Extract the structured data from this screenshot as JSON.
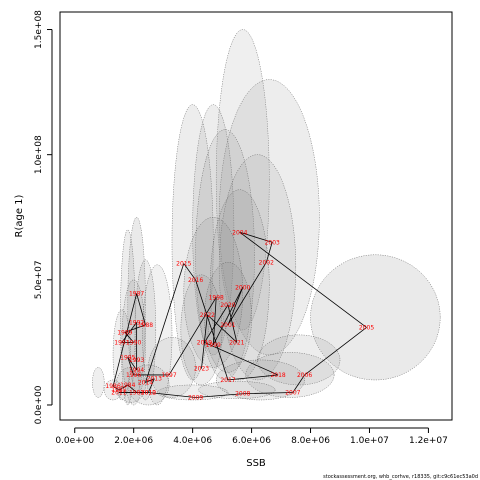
{
  "chart_data": {
    "type": "scatter",
    "title": "",
    "xlabel": "SSB",
    "ylabel": "R(age 1)",
    "xlim": [
      -500000,
      12800000
    ],
    "ylim": [
      -6000000,
      157000000
    ],
    "x_ticks": [
      {
        "value": 0,
        "label": "0.0e+00"
      },
      {
        "value": 2000000,
        "label": "2.0e+06"
      },
      {
        "value": 4000000,
        "label": "4.0e+06"
      },
      {
        "value": 6000000,
        "label": "6.0e+06"
      },
      {
        "value": 8000000,
        "label": "8.0e+06"
      },
      {
        "value": 10000000,
        "label": "1.0e+07"
      },
      {
        "value": 12000000,
        "label": "1.2e+07"
      }
    ],
    "y_ticks": [
      {
        "value": 0,
        "label": "0.0e+00"
      },
      {
        "value": 50000000,
        "label": "5.0e+07"
      },
      {
        "value": 100000000,
        "label": "1.0e+08"
      },
      {
        "value": 150000000,
        "label": "1.5e+08"
      }
    ],
    "grid": false,
    "legend": "none",
    "colors": {
      "ellipse_fill": "#8c8c8c",
      "ellipse_stroke": "#555555",
      "line": "#000000",
      "label": "#ff0000"
    },
    "points": [
      {
        "year": "1983",
        "x": 2100000,
        "y": 5000000
      },
      {
        "year": "1984",
        "x": 1800000,
        "y": 8000000
      },
      {
        "year": "1985",
        "x": 1500000,
        "y": 6000000
      },
      {
        "year": "1986",
        "x": 1300000,
        "y": 7500000
      },
      {
        "year": "1987",
        "x": 2100000,
        "y": 44500000
      },
      {
        "year": "1988",
        "x": 2400000,
        "y": 32000000
      },
      {
        "year": "1989",
        "x": 1700000,
        "y": 29000000
      },
      {
        "year": "1990",
        "x": 2000000,
        "y": 25000000
      },
      {
        "year": "1991",
        "x": 1600000,
        "y": 25000000
      },
      {
        "year": "1992",
        "x": 2100000,
        "y": 33000000
      },
      {
        "year": "1993",
        "x": 2100000,
        "y": 18000000
      },
      {
        "year": "1994",
        "x": 2100000,
        "y": 14000000
      },
      {
        "year": "1995",
        "x": 1800000,
        "y": 19000000
      },
      {
        "year": "1996",
        "x": 2000000,
        "y": 12000000
      },
      {
        "year": "1997",
        "x": 3200000,
        "y": 12000000
      },
      {
        "year": "1998",
        "x": 4800000,
        "y": 43000000
      },
      {
        "year": "1999",
        "x": 4700000,
        "y": 24000000
      },
      {
        "year": "2000",
        "x": 5700000,
        "y": 47000000
      },
      {
        "year": "2001",
        "x": 5200000,
        "y": 32000000
      },
      {
        "year": "2002",
        "x": 6500000,
        "y": 57000000
      },
      {
        "year": "2003",
        "x": 6700000,
        "y": 65000000
      },
      {
        "year": "2004",
        "x": 5600000,
        "y": 69000000
      },
      {
        "year": "2005",
        "x": 9900000,
        "y": 31000000
      },
      {
        "year": "2006",
        "x": 7800000,
        "y": 12000000
      },
      {
        "year": "2007",
        "x": 7400000,
        "y": 5000000
      },
      {
        "year": "2008",
        "x": 5700000,
        "y": 4500000
      },
      {
        "year": "2009",
        "x": 4100000,
        "y": 3000000
      },
      {
        "year": "2010",
        "x": 2500000,
        "y": 5000000
      },
      {
        "year": "2011",
        "x": 1500000,
        "y": 5000000
      },
      {
        "year": "2012",
        "x": 2500000,
        "y": 5000000
      },
      {
        "year": "2013",
        "x": 2700000,
        "y": 10500000
      },
      {
        "year": "2014",
        "x": 2400000,
        "y": 9000000
      },
      {
        "year": "2015",
        "x": 3700000,
        "y": 56500000
      },
      {
        "year": "2016",
        "x": 4100000,
        "y": 50000000
      },
      {
        "year": "2017",
        "x": 5200000,
        "y": 10000000
      },
      {
        "year": "2018",
        "x": 6900000,
        "y": 12000000
      },
      {
        "year": "2019",
        "x": 4400000,
        "y": 25000000
      },
      {
        "year": "2020",
        "x": 5200000,
        "y": 40000000
      },
      {
        "year": "2021",
        "x": 5500000,
        "y": 25000000
      },
      {
        "year": "2022",
        "x": 4500000,
        "y": 36000000
      },
      {
        "year": "2023",
        "x": 4300000,
        "y": 14500000
      }
    ],
    "path_order": [
      "1983",
      "1984",
      "1985",
      "1986",
      "1987",
      "1988",
      "1989",
      "1990",
      "1991",
      "1992",
      "1993",
      "1994",
      "1995",
      "1996",
      "1997",
      "1998",
      "1999",
      "2000",
      "2001",
      "2002",
      "2003",
      "2004",
      "2005",
      "2006",
      "2007",
      "2008",
      "2009",
      "2010",
      "2011",
      "2012",
      "2013",
      "2014",
      "2015",
      "2016",
      "2017",
      "2018",
      "2019",
      "2020",
      "2021",
      "2022",
      "2023"
    ],
    "ellipses": [
      {
        "cx": 5700000,
        "cy": 90000000,
        "rx": 900000,
        "ry": 60000000,
        "opacity": 0.14
      },
      {
        "cx": 6600000,
        "cy": 75000000,
        "rx": 1700000,
        "ry": 55000000,
        "opacity": 0.16
      },
      {
        "cx": 4700000,
        "cy": 70000000,
        "rx": 700000,
        "ry": 50000000,
        "opacity": 0.16
      },
      {
        "cx": 4000000,
        "cy": 65000000,
        "rx": 700000,
        "ry": 55000000,
        "opacity": 0.16
      },
      {
        "cx": 5100000,
        "cy": 60000000,
        "rx": 1000000,
        "ry": 50000000,
        "opacity": 0.16
      },
      {
        "cx": 6200000,
        "cy": 55000000,
        "rx": 1300000,
        "ry": 45000000,
        "opacity": 0.14
      },
      {
        "cx": 5600000,
        "cy": 48000000,
        "rx": 1000000,
        "ry": 38000000,
        "opacity": 0.16
      },
      {
        "cx": 4700000,
        "cy": 45000000,
        "rx": 1000000,
        "ry": 30000000,
        "opacity": 0.16
      },
      {
        "cx": 5200000,
        "cy": 35000000,
        "rx": 800000,
        "ry": 22000000,
        "opacity": 0.16
      },
      {
        "cx": 4300000,
        "cy": 30000000,
        "rx": 700000,
        "ry": 22000000,
        "opacity": 0.16
      },
      {
        "cx": 10200000,
        "cy": 35000000,
        "rx": 2200000,
        "ry": 25000000,
        "opacity": 0.18
      },
      {
        "cx": 7600000,
        "cy": 18000000,
        "rx": 1400000,
        "ry": 10000000,
        "opacity": 0.16
      },
      {
        "cx": 7300000,
        "cy": 12000000,
        "rx": 1500000,
        "ry": 9000000,
        "opacity": 0.16
      },
      {
        "cx": 6300000,
        "cy": 10000000,
        "rx": 1500000,
        "ry": 8000000,
        "opacity": 0.16
      },
      {
        "cx": 5500000,
        "cy": 6000000,
        "rx": 1300000,
        "ry": 3500000,
        "opacity": 0.14
      },
      {
        "cx": 4000000,
        "cy": 5000000,
        "rx": 1200000,
        "ry": 3000000,
        "opacity": 0.14
      },
      {
        "cx": 2100000,
        "cy": 40000000,
        "rx": 300000,
        "ry": 35000000,
        "opacity": 0.18
      },
      {
        "cx": 1800000,
        "cy": 35000000,
        "rx": 250000,
        "ry": 35000000,
        "opacity": 0.16
      },
      {
        "cx": 2400000,
        "cy": 30000000,
        "rx": 350000,
        "ry": 28000000,
        "opacity": 0.16
      },
      {
        "cx": 2000000,
        "cy": 25000000,
        "rx": 400000,
        "ry": 25000000,
        "opacity": 0.14
      },
      {
        "cx": 2800000,
        "cy": 28000000,
        "rx": 500000,
        "ry": 28000000,
        "opacity": 0.12
      },
      {
        "cx": 1600000,
        "cy": 20000000,
        "rx": 300000,
        "ry": 18000000,
        "opacity": 0.14
      },
      {
        "cx": 3300000,
        "cy": 15000000,
        "rx": 800000,
        "ry": 12000000,
        "opacity": 0.14
      },
      {
        "cx": 2500000,
        "cy": 8000000,
        "rx": 700000,
        "ry": 8000000,
        "opacity": 0.14
      },
      {
        "cx": 1900000,
        "cy": 8000000,
        "rx": 500000,
        "ry": 7000000,
        "opacity": 0.14
      },
      {
        "cx": 1300000,
        "cy": 6000000,
        "rx": 300000,
        "ry": 4000000,
        "opacity": 0.14
      },
      {
        "cx": 800000,
        "cy": 9000000,
        "rx": 200000,
        "ry": 6000000,
        "opacity": 0.14
      }
    ]
  },
  "footer": "stockassessment.org, whb_corhve, r18335, git:c9c61ec53a0d"
}
